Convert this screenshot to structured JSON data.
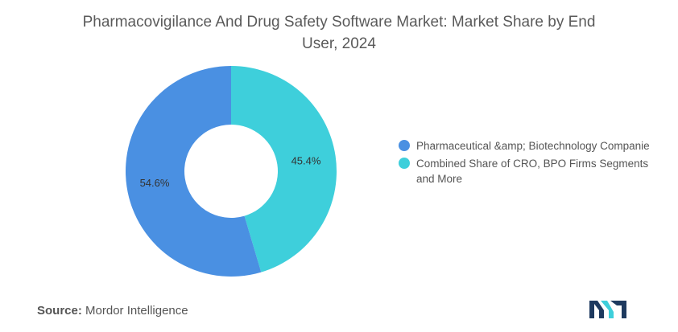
{
  "chart_data": {
    "type": "pie",
    "title": "Pharmacovigilance And Drug Safety Software Market: Market Share by End User, 2024",
    "categories": [
      "Pharmaceutical &amp; Biotechnology Companie",
      "Combined Share of CRO, BPO Firms Segments and More"
    ],
    "values": [
      54.6,
      45.4
    ],
    "labels": [
      "54.6%",
      "45.4%"
    ],
    "colors": [
      "#4a90e2",
      "#3ecfdb"
    ],
    "legend_position": "right",
    "donut": true
  },
  "footer": {
    "source_label": "Source:",
    "source_text": "Mordor Intelligence"
  },
  "logo": {
    "name": "mordor-intelligence-logo",
    "colors": [
      "#1e3a5f",
      "#3ecfdb"
    ]
  }
}
